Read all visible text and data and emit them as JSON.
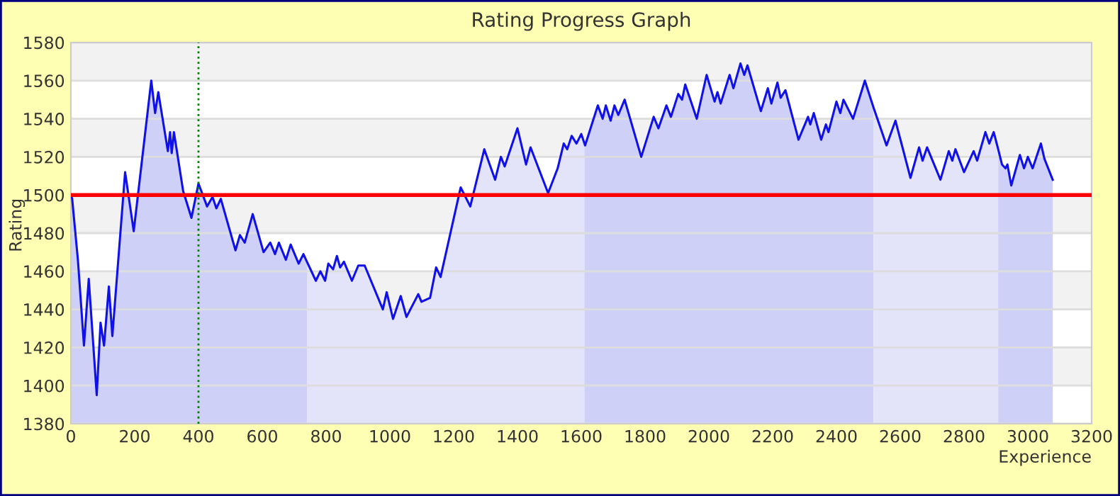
{
  "chart_data": {
    "type": "area",
    "title": "Rating Progress Graph",
    "xlabel": "Experience",
    "ylabel": "Rating",
    "xlim": [
      0,
      3200
    ],
    "xticks": [
      0,
      200,
      400,
      600,
      800,
      1000,
      1200,
      1400,
      1600,
      1800,
      2000,
      2200,
      2400,
      2600,
      2800,
      3000,
      3200
    ],
    "ylim": [
      1380,
      1580
    ],
    "yticks": [
      1380,
      1400,
      1420,
      1440,
      1460,
      1480,
      1500,
      1520,
      1540,
      1560,
      1580
    ],
    "grid": "y",
    "legend": false,
    "marker": "none",
    "line_style": "solid",
    "series": [
      {
        "color": "#cfd0f8",
        "x": [
          0,
          4,
          22,
          41,
          56,
          81,
          93,
          104,
          119,
          130,
          170,
          197,
          252,
          264,
          274,
          304,
          311,
          316,
          323,
          352,
          378,
          400,
          427,
          444,
          456,
          470,
          516,
          530,
          545,
          570,
          604,
          625,
          640,
          652,
          674,
          689,
          714,
          729,
          740
        ],
        "values": [
          1500,
          1498,
          1466,
          1421,
          1456,
          1395,
          1433,
          1421,
          1452,
          1426,
          1512,
          1481,
          1560,
          1543,
          1554,
          1523,
          1533,
          1522,
          1533,
          1502,
          1488,
          1506,
          1494,
          1499,
          1493,
          1498,
          1471,
          1479,
          1475,
          1490,
          1470,
          1475,
          1469,
          1475,
          1466,
          1474,
          1464,
          1469,
          1465
        ]
      },
      {
        "color": "#e3e3fa",
        "x": [
          740,
          768,
          782,
          797,
          807,
          822,
          834,
          844,
          856,
          881,
          901,
          921,
          978,
          990,
          1010,
          1034,
          1052,
          1089,
          1099,
          1126,
          1145,
          1159,
          1222,
          1252,
          1296,
          1330,
          1348,
          1360,
          1400,
          1427,
          1441,
          1496,
          1526,
          1545,
          1556,
          1570,
          1585,
          1600,
          1610
        ],
        "values": [
          1465,
          1455,
          1460,
          1455,
          1464,
          1461,
          1468,
          1462,
          1465,
          1455,
          1463,
          1463,
          1440,
          1449,
          1435,
          1447,
          1436,
          1448,
          1444,
          1446,
          1462,
          1457,
          1504,
          1494,
          1524,
          1508,
          1520,
          1515,
          1535,
          1516,
          1525,
          1501,
          1514,
          1527,
          1524,
          1531,
          1527,
          1532,
          1527
        ]
      },
      {
        "color": "#cfd0f8",
        "x": [
          1610,
          1612,
          1652,
          1667,
          1677,
          1692,
          1704,
          1716,
          1736,
          1788,
          1827,
          1842,
          1867,
          1881,
          1904,
          1916,
          1926,
          1962,
          1993,
          2018,
          2027,
          2037,
          2065,
          2077,
          2099,
          2111,
          2121,
          2163,
          2185,
          2196,
          2215,
          2225,
          2240,
          2281,
          2311,
          2318,
          2329,
          2352,
          2367,
          2375,
          2400,
          2412,
          2422,
          2452,
          2489,
          2516
        ],
        "values": [
          1527,
          1526,
          1547,
          1540,
          1547,
          1539,
          1547,
          1542,
          1550,
          1520,
          1541,
          1535,
          1547,
          1541,
          1553,
          1550,
          1558,
          1540,
          1563,
          1549,
          1554,
          1548,
          1563,
          1556,
          1569,
          1563,
          1568,
          1544,
          1556,
          1548,
          1559,
          1551,
          1555,
          1529,
          1541,
          1537,
          1543,
          1529,
          1537,
          1533,
          1549,
          1543,
          1550,
          1540,
          1560,
          1546
        ]
      },
      {
        "color": "#e3e3fa",
        "x": [
          2516,
          2557,
          2585,
          2632,
          2659,
          2670,
          2684,
          2726,
          2752,
          2763,
          2773,
          2800,
          2830,
          2841,
          2867,
          2879,
          2893,
          2907
        ],
        "values": [
          1546,
          1526,
          1539,
          1509,
          1525,
          1518,
          1525,
          1508,
          1523,
          1518,
          1524,
          1512,
          1523,
          1518,
          1533,
          1527,
          1533,
          1524
        ]
      },
      {
        "color": "#cfd0f8",
        "x": [
          2907,
          2919,
          2930,
          2936,
          2948,
          2975,
          2988,
          3000,
          3015,
          3041,
          3052,
          3078
        ],
        "values": [
          1524,
          1516,
          1514,
          1516,
          1505,
          1521,
          1514,
          1520,
          1514,
          1527,
          1519,
          1508
        ]
      },
      {
        "type": "line",
        "color": "#1010e8",
        "x": [
          0,
          4,
          22,
          41,
          56,
          81,
          93,
          104,
          119,
          130,
          170,
          197,
          252,
          264,
          274,
          304,
          311,
          316,
          323,
          352,
          378,
          400,
          427,
          444,
          456,
          470,
          516,
          530,
          545,
          570,
          604,
          625,
          640,
          652,
          674,
          689,
          714,
          729,
          740,
          768,
          782,
          797,
          807,
          822,
          834,
          844,
          856,
          881,
          901,
          921,
          978,
          990,
          1010,
          1034,
          1052,
          1089,
          1099,
          1126,
          1145,
          1159,
          1222,
          1252,
          1296,
          1330,
          1348,
          1360,
          1400,
          1427,
          1441,
          1496,
          1526,
          1545,
          1556,
          1570,
          1585,
          1600,
          1610,
          1612,
          1652,
          1667,
          1677,
          1692,
          1704,
          1716,
          1736,
          1788,
          1827,
          1842,
          1867,
          1881,
          1904,
          1916,
          1926,
          1962,
          1993,
          2018,
          2027,
          2037,
          2065,
          2077,
          2099,
          2111,
          2121,
          2163,
          2185,
          2196,
          2215,
          2225,
          2240,
          2281,
          2311,
          2318,
          2329,
          2352,
          2367,
          2375,
          2400,
          2412,
          2422,
          2452,
          2489,
          2516,
          2557,
          2585,
          2632,
          2659,
          2670,
          2684,
          2726,
          2752,
          2763,
          2773,
          2800,
          2830,
          2841,
          2867,
          2879,
          2893,
          2907,
          2919,
          2930,
          2936,
          2948,
          2975,
          2988,
          3000,
          3015,
          3041,
          3052,
          3078
        ],
        "values": [
          1500,
          1498,
          1466,
          1421,
          1456,
          1395,
          1433,
          1421,
          1452,
          1426,
          1512,
          1481,
          1560,
          1543,
          1554,
          1523,
          1533,
          1522,
          1533,
          1502,
          1488,
          1506,
          1494,
          1499,
          1493,
          1498,
          1471,
          1479,
          1475,
          1490,
          1470,
          1475,
          1469,
          1475,
          1466,
          1474,
          1464,
          1469,
          1465,
          1455,
          1460,
          1455,
          1464,
          1461,
          1468,
          1462,
          1465,
          1455,
          1463,
          1463,
          1440,
          1449,
          1435,
          1447,
          1436,
          1448,
          1444,
          1446,
          1462,
          1457,
          1504,
          1494,
          1524,
          1508,
          1520,
          1515,
          1535,
          1516,
          1525,
          1501,
          1514,
          1527,
          1524,
          1531,
          1527,
          1532,
          1527,
          1526,
          1547,
          1540,
          1547,
          1539,
          1547,
          1542,
          1550,
          1520,
          1541,
          1535,
          1547,
          1541,
          1553,
          1550,
          1558,
          1540,
          1563,
          1549,
          1554,
          1548,
          1563,
          1556,
          1569,
          1563,
          1568,
          1544,
          1556,
          1548,
          1559,
          1551,
          1555,
          1529,
          1541,
          1537,
          1543,
          1529,
          1537,
          1533,
          1549,
          1543,
          1550,
          1540,
          1560,
          1546,
          1526,
          1539,
          1509,
          1525,
          1518,
          1525,
          1508,
          1523,
          1518,
          1524,
          1512,
          1523,
          1518,
          1533,
          1527,
          1533,
          1524,
          1516,
          1514,
          1516,
          1505,
          1521,
          1514,
          1520,
          1514,
          1527,
          1519,
          1508
        ]
      }
    ],
    "ref_lines": [
      {
        "axis": "y",
        "value": 1500,
        "color": "#ff0000",
        "line_style": "solid"
      },
      {
        "axis": "x",
        "value": 400,
        "color": "#008000",
        "line_style": "dotted"
      }
    ]
  }
}
